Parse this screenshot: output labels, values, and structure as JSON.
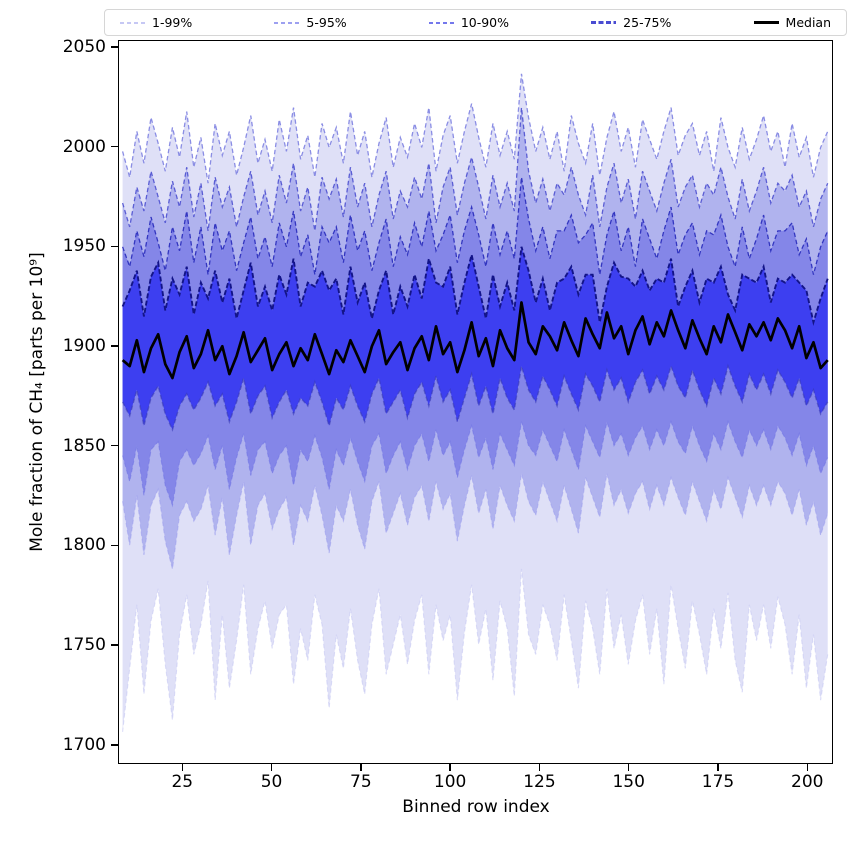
{
  "legend": {
    "items": [
      {
        "label": "1-99%",
        "color": "#c6c8f4",
        "style": "dashed",
        "weight": "thin"
      },
      {
        "label": "5-95%",
        "color": "#9da0f0",
        "style": "dashed",
        "weight": "thin"
      },
      {
        "label": "10-90%",
        "color": "#7478ec",
        "style": "dashed",
        "weight": "thin"
      },
      {
        "label": "25-75%",
        "color": "#4a4cd2",
        "style": "dashed",
        "weight": "thick"
      },
      {
        "label": "Median",
        "color": "#000000",
        "style": "solid",
        "weight": "thick"
      }
    ]
  },
  "chart_data": {
    "type": "area",
    "title": "",
    "xlabel": "Binned row index",
    "ylabel": "Mole fraction of CH₄ [parts per 10⁹]",
    "xlim": [
      7,
      207.2
    ],
    "ylim": [
      1690.4,
      2053.5
    ],
    "xticks": [
      25,
      50,
      75,
      100,
      125,
      150,
      175,
      200
    ],
    "yticks": [
      1700,
      1750,
      1800,
      1850,
      1900,
      1950,
      2000,
      2050
    ],
    "grid": false,
    "legend_position": "top",
    "x": [
      8,
      10,
      12,
      14,
      16,
      18,
      20,
      22,
      24,
      26,
      28,
      30,
      32,
      34,
      36,
      38,
      40,
      42,
      44,
      46,
      48,
      50,
      52,
      54,
      56,
      58,
      60,
      62,
      64,
      66,
      68,
      70,
      72,
      74,
      76,
      78,
      80,
      82,
      84,
      86,
      88,
      90,
      92,
      94,
      96,
      98,
      100,
      102,
      104,
      106,
      108,
      110,
      112,
      114,
      116,
      118,
      120,
      122,
      124,
      126,
      128,
      130,
      132,
      134,
      136,
      138,
      140,
      142,
      144,
      146,
      148,
      150,
      152,
      154,
      156,
      158,
      160,
      162,
      164,
      166,
      168,
      170,
      172,
      174,
      176,
      178,
      180,
      182,
      184,
      186,
      188,
      190,
      192,
      194,
      196,
      198,
      200,
      202,
      204,
      206
    ],
    "percentiles": {
      "p99": [
        1998,
        1985,
        2008,
        1992,
        2015,
        2002,
        1988,
        2010,
        1995,
        2018,
        1990,
        2005,
        1982,
        2012,
        1996,
        2008,
        1986,
        2000,
        2016,
        1992,
        2004,
        1988,
        2014,
        1998,
        2020,
        1994,
        2006,
        1985,
        2012,
        2000,
        2010,
        1992,
        2018,
        1996,
        2008,
        1985,
        2002,
        2015,
        1990,
        2005,
        1995,
        2012,
        2000,
        2020,
        1988,
        2006,
        2016,
        1992,
        2008,
        2022,
        2005,
        1990,
        2012,
        1996,
        2008,
        1994,
        2037,
        2015,
        1998,
        2010,
        1994,
        2008,
        1988,
        2016,
        2002,
        1992,
        2012,
        1986,
        2005,
        2018,
        1998,
        2010,
        1990,
        2014,
        2004,
        1994,
        2008,
        2020,
        1996,
        2006,
        2012,
        1996,
        2008,
        1988,
        2015,
        2000,
        1990,
        2010,
        1994,
        2004,
        2016,
        1998,
        2008,
        1990,
        2012,
        1995,
        2005,
        1985,
        2000,
        2008
      ],
      "p95": [
        1972,
        1960,
        1980,
        1968,
        1988,
        1975,
        1962,
        1983,
        1970,
        1990,
        1965,
        1982,
        1958,
        1985,
        1970,
        1980,
        1960,
        1975,
        1988,
        1966,
        1978,
        1962,
        1986,
        1972,
        1992,
        1968,
        1980,
        1958,
        1985,
        1974,
        1984,
        1965,
        1990,
        1970,
        1982,
        1960,
        1976,
        1988,
        1964,
        1978,
        1970,
        1985,
        1974,
        1992,
        1962,
        1980,
        1990,
        1966,
        1982,
        1995,
        1980,
        1964,
        1986,
        1970,
        1982,
        1968,
        2020,
        1988,
        1972,
        1984,
        1968,
        1982,
        1976,
        1990,
        1976,
        1966,
        1986,
        1960,
        1980,
        1992,
        1972,
        1984,
        1964,
        1988,
        1978,
        1968,
        1982,
        1994,
        1970,
        1980,
        1986,
        1970,
        1982,
        1976,
        1990,
        1975,
        1964,
        1984,
        1968,
        1978,
        1990,
        1972,
        1982,
        1978,
        1986,
        1970,
        1978,
        1960,
        1974,
        1982
      ],
      "p90": [
        1950,
        1940,
        1958,
        1945,
        1965,
        1952,
        1938,
        1960,
        1948,
        1968,
        1942,
        1960,
        1936,
        1962,
        1948,
        1958,
        1938,
        1952,
        1965,
        1944,
        1955,
        1940,
        1962,
        1950,
        1968,
        1945,
        1956,
        1936,
        1960,
        1952,
        1960,
        1942,
        1966,
        1948,
        1958,
        1938,
        1952,
        1964,
        1940,
        1955,
        1946,
        1962,
        1950,
        1968,
        1948,
        1956,
        1966,
        1942,
        1958,
        1970,
        1956,
        1940,
        1962,
        1946,
        1958,
        1944,
        1985,
        1964,
        1948,
        1960,
        1944,
        1958,
        1958,
        1966,
        1952,
        1956,
        1962,
        1936,
        1956,
        1968,
        1948,
        1960,
        1940,
        1964,
        1954,
        1944,
        1958,
        1970,
        1946,
        1956,
        1962,
        1946,
        1958,
        1956,
        1966,
        1950,
        1940,
        1960,
        1944,
        1954,
        1966,
        1948,
        1958,
        1958,
        1962,
        1946,
        1954,
        1936,
        1950,
        1958
      ],
      "p75": [
        1920,
        1928,
        1938,
        1915,
        1935,
        1942,
        1918,
        1934,
        1926,
        1940,
        1916,
        1932,
        1924,
        1938,
        1922,
        1934,
        1914,
        1928,
        1942,
        1920,
        1930,
        1918,
        1936,
        1926,
        1944,
        1920,
        1932,
        1930,
        1938,
        1928,
        1934,
        1916,
        1940,
        1922,
        1932,
        1914,
        1928,
        1938,
        1916,
        1930,
        1920,
        1936,
        1924,
        1944,
        1932,
        1930,
        1940,
        1916,
        1932,
        1946,
        1930,
        1914,
        1936,
        1920,
        1932,
        1918,
        1950,
        1938,
        1922,
        1934,
        1918,
        1932,
        1934,
        1940,
        1926,
        1936,
        1936,
        1912,
        1930,
        1942,
        1935,
        1934,
        1930,
        1938,
        1928,
        1934,
        1932,
        1944,
        1920,
        1930,
        1938,
        1922,
        1934,
        1932,
        1940,
        1926,
        1918,
        1936,
        1934,
        1932,
        1940,
        1922,
        1934,
        1932,
        1936,
        1932,
        1928,
        1912,
        1924,
        1934
      ],
      "p25": [
        1872,
        1865,
        1878,
        1860,
        1874,
        1880,
        1866,
        1858,
        1870,
        1876,
        1868,
        1874,
        1882,
        1870,
        1876,
        1862,
        1872,
        1884,
        1866,
        1875,
        1880,
        1864,
        1872,
        1878,
        1866,
        1874,
        1870,
        1882,
        1872,
        1860,
        1874,
        1868,
        1880,
        1870,
        1862,
        1876,
        1884,
        1866,
        1872,
        1878,
        1864,
        1876,
        1882,
        1870,
        1885,
        1872,
        1878,
        1862,
        1874,
        1886,
        1870,
        1880,
        1866,
        1884,
        1874,
        1868,
        1890,
        1878,
        1872,
        1885,
        1878,
        1870,
        1885,
        1876,
        1868,
        1886,
        1880,
        1872,
        1888,
        1878,
        1884,
        1872,
        1882,
        1888,
        1876,
        1885,
        1878,
        1890,
        1880,
        1874,
        1888,
        1878,
        1870,
        1884,
        1876,
        1890,
        1880,
        1872,
        1886,
        1878,
        1886,
        1876,
        1888,
        1882,
        1874,
        1884,
        1870,
        1878,
        1866,
        1872
      ],
      "p10": [
        1845,
        1832,
        1850,
        1825,
        1848,
        1852,
        1830,
        1820,
        1842,
        1848,
        1840,
        1846,
        1855,
        1838,
        1850,
        1828,
        1844,
        1856,
        1835,
        1848,
        1852,
        1836,
        1845,
        1850,
        1830,
        1848,
        1842,
        1855,
        1844,
        1828,
        1848,
        1840,
        1854,
        1842,
        1832,
        1850,
        1856,
        1836,
        1845,
        1852,
        1838,
        1850,
        1856,
        1842,
        1858,
        1845,
        1852,
        1834,
        1848,
        1860,
        1844,
        1854,
        1838,
        1856,
        1848,
        1840,
        1862,
        1850,
        1845,
        1858,
        1850,
        1842,
        1858,
        1848,
        1838,
        1860,
        1852,
        1844,
        1862,
        1850,
        1856,
        1845,
        1854,
        1860,
        1848,
        1858,
        1850,
        1862,
        1852,
        1846,
        1860,
        1850,
        1842,
        1856,
        1848,
        1862,
        1852,
        1844,
        1858,
        1850,
        1858,
        1848,
        1860,
        1854,
        1845,
        1856,
        1840,
        1850,
        1836,
        1844
      ],
      "p5": [
        1822,
        1800,
        1825,
        1795,
        1820,
        1828,
        1802,
        1788,
        1815,
        1822,
        1812,
        1818,
        1830,
        1805,
        1824,
        1795,
        1815,
        1832,
        1800,
        1820,
        1826,
        1808,
        1818,
        1824,
        1800,
        1820,
        1812,
        1830,
        1815,
        1796,
        1820,
        1812,
        1828,
        1810,
        1798,
        1822,
        1832,
        1806,
        1816,
        1826,
        1810,
        1824,
        1830,
        1812,
        1832,
        1818,
        1826,
        1802,
        1820,
        1835,
        1816,
        1828,
        1808,
        1830,
        1820,
        1812,
        1836,
        1822,
        1815,
        1832,
        1822,
        1812,
        1830,
        1818,
        1806,
        1834,
        1824,
        1814,
        1836,
        1820,
        1828,
        1816,
        1826,
        1832,
        1818,
        1830,
        1820,
        1834,
        1824,
        1815,
        1832,
        1822,
        1812,
        1828,
        1818,
        1834,
        1824,
        1814,
        1830,
        1820,
        1830,
        1820,
        1832,
        1826,
        1815,
        1828,
        1810,
        1822,
        1805,
        1816
      ],
      "p1": [
        1706,
        1738,
        1770,
        1725,
        1762,
        1778,
        1740,
        1712,
        1755,
        1775,
        1745,
        1760,
        1782,
        1722,
        1765,
        1728,
        1752,
        1780,
        1735,
        1758,
        1772,
        1748,
        1765,
        1770,
        1730,
        1758,
        1742,
        1775,
        1760,
        1718,
        1755,
        1738,
        1768,
        1742,
        1725,
        1760,
        1778,
        1735,
        1750,
        1765,
        1740,
        1762,
        1775,
        1735,
        1770,
        1752,
        1765,
        1722,
        1756,
        1780,
        1750,
        1768,
        1732,
        1772,
        1758,
        1724,
        1788,
        1755,
        1745,
        1770,
        1760,
        1742,
        1775,
        1752,
        1728,
        1772,
        1758,
        1735,
        1778,
        1748,
        1765,
        1740,
        1762,
        1775,
        1745,
        1768,
        1730,
        1780,
        1758,
        1738,
        1772,
        1755,
        1735,
        1768,
        1748,
        1776,
        1742,
        1726,
        1770,
        1752,
        1770,
        1748,
        1774,
        1760,
        1735,
        1765,
        1728,
        1755,
        1722,
        1745
      ]
    },
    "median": [
      1893,
      1890,
      1903,
      1887,
      1899,
      1906,
      1891,
      1884,
      1897,
      1905,
      1889,
      1896,
      1908,
      1893,
      1900,
      1886,
      1895,
      1907,
      1892,
      1898,
      1904,
      1888,
      1896,
      1902,
      1890,
      1899,
      1893,
      1906,
      1896,
      1886,
      1898,
      1892,
      1903,
      1895,
      1887,
      1900,
      1908,
      1891,
      1897,
      1902,
      1888,
      1899,
      1905,
      1893,
      1910,
      1896,
      1902,
      1887,
      1898,
      1912,
      1895,
      1904,
      1890,
      1908,
      1899,
      1893,
      1922,
      1902,
      1896,
      1910,
      1905,
      1898,
      1912,
      1903,
      1895,
      1914,
      1906,
      1899,
      1917,
      1904,
      1910,
      1896,
      1908,
      1915,
      1901,
      1912,
      1905,
      1918,
      1908,
      1899,
      1913,
      1904,
      1896,
      1910,
      1902,
      1916,
      1907,
      1898,
      1911,
      1905,
      1912,
      1903,
      1914,
      1908,
      1899,
      1910,
      1894,
      1902,
      1889,
      1893
    ],
    "median_color": "#000000",
    "bands": [
      {
        "label": "1-99%",
        "lower": "p1",
        "upper": "p99",
        "fill": "#dfe0f7",
        "edge_upper": "#8a8de4",
        "edge_lower": "#c2c4f2"
      },
      {
        "label": "5-95%",
        "lower": "p5",
        "upper": "p95",
        "fill": "#b0b3ee",
        "edge_upper": "#5a5dd4",
        "edge_lower": "#9a9dee"
      },
      {
        "label": "10-90%",
        "lower": "p10",
        "upper": "p90",
        "fill": "#8486e8",
        "edge_upper": "#3336c0",
        "edge_lower": "#6f72e4"
      },
      {
        "label": "25-75%",
        "lower": "p25",
        "upper": "p75",
        "fill": "#3d3ff0",
        "edge_upper": "#131488",
        "edge_lower": "#3639b0"
      }
    ]
  }
}
